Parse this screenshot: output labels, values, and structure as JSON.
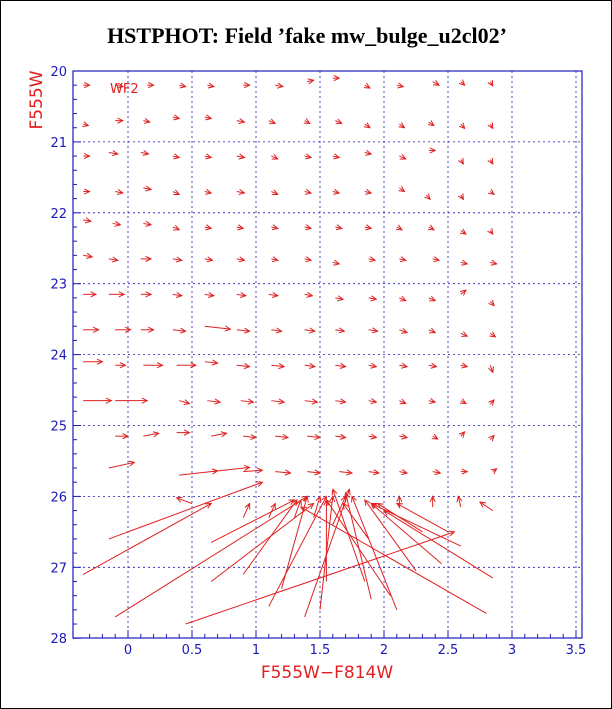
{
  "chart_data": {
    "type": "scatter",
    "title": "HSTPHOT: Field ’fake mw_bulge_u2cl02’",
    "xlabel": "F555W−F814W",
    "ylabel": "F555W",
    "panel_label": "WF2",
    "xlim": [
      -0.4,
      3.55
    ],
    "ylim": [
      28,
      20
    ],
    "y_inverted": true,
    "grid": true,
    "x_ticks": [
      "0",
      "0.5",
      "1",
      "1.5",
      "2",
      "2.5",
      "3",
      "3.5"
    ],
    "y_ticks": [
      "20",
      "21",
      "22",
      "23",
      "24",
      "25",
      "26",
      "27",
      "28"
    ],
    "colors": {
      "vectors": "#e02020",
      "frame": "#1a1ab8",
      "grid": "#1a1ab8",
      "title": "#000000"
    },
    "vectors": [
      {
        "x0": -0.35,
        "y0": 20.2,
        "dx": 0.05,
        "dy": 0.0
      },
      {
        "x0": -0.1,
        "y0": 20.2,
        "dx": 0.06,
        "dy": 0.02
      },
      {
        "x0": 0.15,
        "y0": 20.2,
        "dx": 0.05,
        "dy": 0.0
      },
      {
        "x0": 0.4,
        "y0": 20.2,
        "dx": 0.05,
        "dy": 0.02
      },
      {
        "x0": 0.62,
        "y0": 20.2,
        "dx": 0.05,
        "dy": 0.02
      },
      {
        "x0": 0.9,
        "y0": 20.2,
        "dx": 0.05,
        "dy": 0.0
      },
      {
        "x0": 1.15,
        "y0": 20.2,
        "dx": 0.06,
        "dy": 0.02
      },
      {
        "x0": 1.4,
        "y0": 20.15,
        "dx": 0.05,
        "dy": -0.02
      },
      {
        "x0": 1.6,
        "y0": 20.1,
        "dx": 0.05,
        "dy": 0.0
      },
      {
        "x0": 1.85,
        "y0": 20.2,
        "dx": 0.04,
        "dy": 0.04
      },
      {
        "x0": 2.1,
        "y0": 20.2,
        "dx": 0.05,
        "dy": 0.02
      },
      {
        "x0": 2.38,
        "y0": 20.15,
        "dx": 0.05,
        "dy": 0.05
      },
      {
        "x0": 2.6,
        "y0": 20.15,
        "dx": 0.03,
        "dy": 0.05
      },
      {
        "x0": 2.83,
        "y0": 20.15,
        "dx": 0.02,
        "dy": 0.06
      },
      {
        "x0": -0.35,
        "y0": 20.75,
        "dx": 0.04,
        "dy": 0.02
      },
      {
        "x0": -0.1,
        "y0": 20.7,
        "dx": 0.06,
        "dy": 0.0
      },
      {
        "x0": 0.12,
        "y0": 20.7,
        "dx": 0.05,
        "dy": 0.02
      },
      {
        "x0": 0.35,
        "y0": 20.65,
        "dx": 0.05,
        "dy": 0.02
      },
      {
        "x0": 0.6,
        "y0": 20.65,
        "dx": 0.05,
        "dy": 0.02
      },
      {
        "x0": 0.85,
        "y0": 20.7,
        "dx": 0.06,
        "dy": 0.02
      },
      {
        "x0": 1.1,
        "y0": 20.7,
        "dx": 0.05,
        "dy": 0.04
      },
      {
        "x0": 1.38,
        "y0": 20.7,
        "dx": 0.04,
        "dy": 0.04
      },
      {
        "x0": 1.62,
        "y0": 20.7,
        "dx": 0.05,
        "dy": 0.04
      },
      {
        "x0": 1.85,
        "y0": 20.75,
        "dx": 0.04,
        "dy": 0.05
      },
      {
        "x0": 2.12,
        "y0": 20.75,
        "dx": 0.04,
        "dy": 0.05
      },
      {
        "x0": 2.35,
        "y0": 20.72,
        "dx": 0.04,
        "dy": 0.05
      },
      {
        "x0": 2.6,
        "y0": 20.75,
        "dx": 0.03,
        "dy": 0.06
      },
      {
        "x0": 2.83,
        "y0": 20.75,
        "dx": 0.02,
        "dy": 0.06
      },
      {
        "x0": -0.35,
        "y0": 21.2,
        "dx": 0.05,
        "dy": 0.0
      },
      {
        "x0": -0.15,
        "y0": 21.15,
        "dx": 0.07,
        "dy": 0.02
      },
      {
        "x0": 0.1,
        "y0": 21.15,
        "dx": 0.06,
        "dy": 0.02
      },
      {
        "x0": 0.35,
        "y0": 21.2,
        "dx": 0.05,
        "dy": 0.02
      },
      {
        "x0": 0.6,
        "y0": 21.2,
        "dx": 0.05,
        "dy": 0.02
      },
      {
        "x0": 0.85,
        "y0": 21.2,
        "dx": 0.06,
        "dy": 0.02
      },
      {
        "x0": 1.12,
        "y0": 21.2,
        "dx": 0.05,
        "dy": 0.04
      },
      {
        "x0": 1.38,
        "y0": 21.2,
        "dx": 0.05,
        "dy": 0.02
      },
      {
        "x0": 1.6,
        "y0": 21.2,
        "dx": 0.05,
        "dy": 0.02
      },
      {
        "x0": 1.85,
        "y0": 21.15,
        "dx": 0.05,
        "dy": 0.02
      },
      {
        "x0": 2.12,
        "y0": 21.2,
        "dx": 0.05,
        "dy": 0.04
      },
      {
        "x0": 2.35,
        "y0": 21.12,
        "dx": 0.05,
        "dy": 0.0
      },
      {
        "x0": 2.6,
        "y0": 21.25,
        "dx": 0.02,
        "dy": 0.06
      },
      {
        "x0": 2.83,
        "y0": 21.25,
        "dx": 0.02,
        "dy": 0.06
      },
      {
        "x0": -0.35,
        "y0": 21.7,
        "dx": 0.05,
        "dy": 0.0
      },
      {
        "x0": -0.1,
        "y0": 21.7,
        "dx": 0.06,
        "dy": 0.02
      },
      {
        "x0": 0.12,
        "y0": 21.65,
        "dx": 0.06,
        "dy": 0.02
      },
      {
        "x0": 0.35,
        "y0": 21.7,
        "dx": 0.05,
        "dy": 0.04
      },
      {
        "x0": 0.6,
        "y0": 21.7,
        "dx": 0.05,
        "dy": 0.02
      },
      {
        "x0": 0.85,
        "y0": 21.7,
        "dx": 0.06,
        "dy": 0.02
      },
      {
        "x0": 1.12,
        "y0": 21.7,
        "dx": 0.05,
        "dy": 0.04
      },
      {
        "x0": 1.38,
        "y0": 21.7,
        "dx": 0.05,
        "dy": 0.02
      },
      {
        "x0": 1.6,
        "y0": 21.7,
        "dx": 0.05,
        "dy": 0.02
      },
      {
        "x0": 1.85,
        "y0": 21.7,
        "dx": 0.05,
        "dy": 0.02
      },
      {
        "x0": 2.12,
        "y0": 21.65,
        "dx": 0.04,
        "dy": 0.05
      },
      {
        "x0": 2.33,
        "y0": 21.75,
        "dx": 0.03,
        "dy": 0.06
      },
      {
        "x0": 2.6,
        "y0": 21.75,
        "dx": 0.02,
        "dy": 0.06
      },
      {
        "x0": 2.83,
        "y0": 21.7,
        "dx": 0.03,
        "dy": 0.04
      },
      {
        "x0": -0.35,
        "y0": 22.1,
        "dx": 0.06,
        "dy": 0.02
      },
      {
        "x0": -0.12,
        "y0": 22.15,
        "dx": 0.06,
        "dy": 0.02
      },
      {
        "x0": 0.12,
        "y0": 22.15,
        "dx": 0.06,
        "dy": 0.02
      },
      {
        "x0": 0.35,
        "y0": 22.2,
        "dx": 0.05,
        "dy": 0.04
      },
      {
        "x0": 0.6,
        "y0": 22.2,
        "dx": 0.05,
        "dy": 0.02
      },
      {
        "x0": 0.85,
        "y0": 22.2,
        "dx": 0.05,
        "dy": 0.02
      },
      {
        "x0": 1.12,
        "y0": 22.2,
        "dx": 0.05,
        "dy": 0.02
      },
      {
        "x0": 1.38,
        "y0": 22.2,
        "dx": 0.05,
        "dy": 0.02
      },
      {
        "x0": 1.62,
        "y0": 22.2,
        "dx": 0.05,
        "dy": 0.02
      },
      {
        "x0": 1.85,
        "y0": 22.2,
        "dx": 0.05,
        "dy": 0.02
      },
      {
        "x0": 2.1,
        "y0": 22.2,
        "dx": 0.04,
        "dy": 0.04
      },
      {
        "x0": 2.35,
        "y0": 22.2,
        "dx": 0.04,
        "dy": 0.04
      },
      {
        "x0": 2.6,
        "y0": 22.25,
        "dx": 0.04,
        "dy": 0.05
      },
      {
        "x0": 2.83,
        "y0": 22.25,
        "dx": 0.02,
        "dy": 0.05
      },
      {
        "x0": -0.35,
        "y0": 22.6,
        "dx": 0.07,
        "dy": 0.02
      },
      {
        "x0": -0.15,
        "y0": 22.65,
        "dx": 0.07,
        "dy": 0.02
      },
      {
        "x0": 0.1,
        "y0": 22.65,
        "dx": 0.08,
        "dy": 0.0
      },
      {
        "x0": 0.35,
        "y0": 22.65,
        "dx": 0.07,
        "dy": 0.02
      },
      {
        "x0": 0.6,
        "y0": 22.65,
        "dx": 0.06,
        "dy": 0.02
      },
      {
        "x0": 0.85,
        "y0": 22.65,
        "dx": 0.06,
        "dy": 0.02
      },
      {
        "x0": 1.12,
        "y0": 22.65,
        "dx": 0.05,
        "dy": 0.02
      },
      {
        "x0": 1.38,
        "y0": 22.65,
        "dx": 0.05,
        "dy": 0.02
      },
      {
        "x0": 1.6,
        "y0": 22.7,
        "dx": 0.05,
        "dy": 0.02
      },
      {
        "x0": 1.88,
        "y0": 22.65,
        "dx": 0.05,
        "dy": 0.02
      },
      {
        "x0": 2.12,
        "y0": 22.65,
        "dx": 0.05,
        "dy": 0.02
      },
      {
        "x0": 2.38,
        "y0": 22.65,
        "dx": 0.05,
        "dy": 0.02
      },
      {
        "x0": 2.6,
        "y0": 22.7,
        "dx": 0.05,
        "dy": 0.02
      },
      {
        "x0": 2.83,
        "y0": 22.7,
        "dx": 0.05,
        "dy": 0.02
      },
      {
        "x0": -0.35,
        "y0": 23.15,
        "dx": 0.1,
        "dy": 0.0
      },
      {
        "x0": -0.15,
        "y0": 23.15,
        "dx": 0.12,
        "dy": 0.0
      },
      {
        "x0": 0.1,
        "y0": 23.15,
        "dx": 0.08,
        "dy": 0.0
      },
      {
        "x0": 0.35,
        "y0": 23.15,
        "dx": 0.07,
        "dy": 0.02
      },
      {
        "x0": 0.6,
        "y0": 23.15,
        "dx": 0.07,
        "dy": 0.02
      },
      {
        "x0": 0.85,
        "y0": 23.15,
        "dx": 0.07,
        "dy": 0.02
      },
      {
        "x0": 1.1,
        "y0": 23.15,
        "dx": 0.07,
        "dy": 0.02
      },
      {
        "x0": 1.38,
        "y0": 23.15,
        "dx": 0.06,
        "dy": 0.02
      },
      {
        "x0": 1.62,
        "y0": 23.2,
        "dx": 0.06,
        "dy": 0.02
      },
      {
        "x0": 1.88,
        "y0": 23.2,
        "dx": 0.06,
        "dy": 0.02
      },
      {
        "x0": 2.12,
        "y0": 23.2,
        "dx": 0.05,
        "dy": 0.04
      },
      {
        "x0": 2.35,
        "y0": 23.2,
        "dx": 0.05,
        "dy": 0.04
      },
      {
        "x0": 2.6,
        "y0": 23.15,
        "dx": 0.04,
        "dy": -0.06
      },
      {
        "x0": 2.83,
        "y0": 23.25,
        "dx": 0.03,
        "dy": 0.06
      },
      {
        "x0": -0.35,
        "y0": 23.65,
        "dx": 0.12,
        "dy": 0.0
      },
      {
        "x0": -0.1,
        "y0": 23.65,
        "dx": 0.12,
        "dy": 0.0
      },
      {
        "x0": 0.1,
        "y0": 23.65,
        "dx": 0.1,
        "dy": 0.0
      },
      {
        "x0": 0.35,
        "y0": 23.65,
        "dx": 0.1,
        "dy": 0.02
      },
      {
        "x0": 0.6,
        "y0": 23.6,
        "dx": 0.2,
        "dy": 0.04
      },
      {
        "x0": 0.85,
        "y0": 23.65,
        "dx": 0.1,
        "dy": 0.02
      },
      {
        "x0": 1.12,
        "y0": 23.65,
        "dx": 0.08,
        "dy": 0.02
      },
      {
        "x0": 1.38,
        "y0": 23.65,
        "dx": 0.08,
        "dy": 0.02
      },
      {
        "x0": 1.62,
        "y0": 23.65,
        "dx": 0.07,
        "dy": 0.02
      },
      {
        "x0": 1.88,
        "y0": 23.65,
        "dx": 0.07,
        "dy": 0.02
      },
      {
        "x0": 2.12,
        "y0": 23.65,
        "dx": 0.06,
        "dy": 0.04
      },
      {
        "x0": 2.35,
        "y0": 23.65,
        "dx": 0.05,
        "dy": 0.04
      },
      {
        "x0": 2.6,
        "y0": 23.7,
        "dx": 0.05,
        "dy": 0.04
      },
      {
        "x0": 2.83,
        "y0": 23.7,
        "dx": 0.04,
        "dy": 0.05
      },
      {
        "x0": -0.35,
        "y0": 24.1,
        "dx": 0.15,
        "dy": 0.0
      },
      {
        "x0": -0.1,
        "y0": 24.15,
        "dx": 0.08,
        "dy": 0.0
      },
      {
        "x0": 0.12,
        "y0": 24.15,
        "dx": 0.15,
        "dy": 0.0
      },
      {
        "x0": 0.38,
        "y0": 24.15,
        "dx": 0.15,
        "dy": 0.0
      },
      {
        "x0": 0.6,
        "y0": 24.1,
        "dx": 0.1,
        "dy": 0.02
      },
      {
        "x0": 0.85,
        "y0": 24.15,
        "dx": 0.1,
        "dy": 0.02
      },
      {
        "x0": 1.12,
        "y0": 24.15,
        "dx": 0.1,
        "dy": 0.02
      },
      {
        "x0": 1.38,
        "y0": 24.15,
        "dx": 0.08,
        "dy": 0.02
      },
      {
        "x0": 1.62,
        "y0": 24.15,
        "dx": 0.08,
        "dy": 0.02
      },
      {
        "x0": 1.88,
        "y0": 24.15,
        "dx": 0.06,
        "dy": 0.02
      },
      {
        "x0": 2.12,
        "y0": 24.15,
        "dx": 0.06,
        "dy": 0.02
      },
      {
        "x0": 2.35,
        "y0": 24.15,
        "dx": 0.06,
        "dy": 0.02
      },
      {
        "x0": 2.6,
        "y0": 24.15,
        "dx": 0.05,
        "dy": 0.02
      },
      {
        "x0": 2.83,
        "y0": 24.15,
        "dx": 0.02,
        "dy": 0.1
      },
      {
        "x0": -0.35,
        "y0": 24.65,
        "dx": 0.22,
        "dy": 0.0
      },
      {
        "x0": -0.1,
        "y0": 24.65,
        "dx": 0.25,
        "dy": 0.0
      },
      {
        "x0": 0.4,
        "y0": 24.65,
        "dx": 0.08,
        "dy": 0.04
      },
      {
        "x0": 0.62,
        "y0": 24.65,
        "dx": 0.1,
        "dy": 0.02
      },
      {
        "x0": 0.88,
        "y0": 24.65,
        "dx": 0.1,
        "dy": 0.02
      },
      {
        "x0": 1.12,
        "y0": 24.65,
        "dx": 0.1,
        "dy": 0.02
      },
      {
        "x0": 1.38,
        "y0": 24.65,
        "dx": 0.1,
        "dy": 0.02
      },
      {
        "x0": 1.62,
        "y0": 24.65,
        "dx": 0.08,
        "dy": 0.02
      },
      {
        "x0": 1.88,
        "y0": 24.65,
        "dx": 0.06,
        "dy": 0.02
      },
      {
        "x0": 2.12,
        "y0": 24.65,
        "dx": 0.05,
        "dy": 0.04
      },
      {
        "x0": 2.35,
        "y0": 24.65,
        "dx": 0.05,
        "dy": 0.02
      },
      {
        "x0": 2.6,
        "y0": 24.65,
        "dx": 0.04,
        "dy": 0.04
      },
      {
        "x0": 2.83,
        "y0": 24.7,
        "dx": 0.03,
        "dy": -0.06
      },
      {
        "x0": -0.1,
        "y0": 25.15,
        "dx": 0.1,
        "dy": 0.0
      },
      {
        "x0": 0.12,
        "y0": 25.15,
        "dx": 0.12,
        "dy": -0.04
      },
      {
        "x0": 0.38,
        "y0": 25.1,
        "dx": 0.1,
        "dy": 0.0
      },
      {
        "x0": 0.65,
        "y0": 25.15,
        "dx": 0.12,
        "dy": -0.04
      },
      {
        "x0": 0.9,
        "y0": 25.15,
        "dx": 0.1,
        "dy": 0.02
      },
      {
        "x0": 1.15,
        "y0": 25.15,
        "dx": 0.1,
        "dy": 0.02
      },
      {
        "x0": 1.4,
        "y0": 25.15,
        "dx": 0.1,
        "dy": 0.02
      },
      {
        "x0": 1.62,
        "y0": 25.15,
        "dx": 0.08,
        "dy": 0.02
      },
      {
        "x0": 1.88,
        "y0": 25.15,
        "dx": 0.06,
        "dy": 0.02
      },
      {
        "x0": 2.12,
        "y0": 25.15,
        "dx": 0.06,
        "dy": 0.02
      },
      {
        "x0": 2.38,
        "y0": 25.15,
        "dx": 0.04,
        "dy": 0.04
      },
      {
        "x0": 2.6,
        "y0": 25.15,
        "dx": 0.03,
        "dy": -0.06
      },
      {
        "x0": 2.83,
        "y0": 25.2,
        "dx": 0.03,
        "dy": -0.06
      },
      {
        "x0": -0.15,
        "y0": 25.6,
        "dx": 0.2,
        "dy": -0.08
      },
      {
        "x0": 0.4,
        "y0": 25.7,
        "dx": 0.3,
        "dy": -0.06
      },
      {
        "x0": 0.65,
        "y0": 25.65,
        "dx": 0.3,
        "dy": -0.06
      },
      {
        "x0": 0.9,
        "y0": 25.65,
        "dx": 0.15,
        "dy": -0.02
      },
      {
        "x0": 1.15,
        "y0": 25.65,
        "dx": 0.12,
        "dy": 0.02
      },
      {
        "x0": 1.4,
        "y0": 25.65,
        "dx": 0.1,
        "dy": 0.02
      },
      {
        "x0": 1.65,
        "y0": 25.65,
        "dx": 0.1,
        "dy": 0.02
      },
      {
        "x0": 1.88,
        "y0": 25.65,
        "dx": 0.08,
        "dy": 0.02
      },
      {
        "x0": 2.12,
        "y0": 25.65,
        "dx": 0.06,
        "dy": 0.02
      },
      {
        "x0": 2.38,
        "y0": 25.65,
        "dx": 0.06,
        "dy": 0.02
      },
      {
        "x0": 2.6,
        "y0": 25.65,
        "dx": 0.05,
        "dy": 0.0
      },
      {
        "x0": 2.85,
        "y0": 25.65,
        "dx": 0.03,
        "dy": -0.04
      },
      {
        "x0": -0.15,
        "y0": 26.6,
        "dx": 1.2,
        "dy": -0.8
      },
      {
        "x0": -0.35,
        "y0": 27.1,
        "dx": 1.0,
        "dy": -1.0
      },
      {
        "x0": -0.1,
        "y0": 27.7,
        "dx": 1.5,
        "dy": -1.7
      },
      {
        "x0": 0.45,
        "y0": 27.8,
        "dx": 2.1,
        "dy": -1.3
      },
      {
        "x0": 0.65,
        "y0": 26.65,
        "dx": 0.65,
        "dy": -0.6
      },
      {
        "x0": 0.65,
        "y0": 27.2,
        "dx": 0.8,
        "dy": -1.1
      },
      {
        "x0": 0.5,
        "y0": 26.1,
        "dx": -0.12,
        "dy": -0.08
      },
      {
        "x0": 0.9,
        "y0": 27.1,
        "dx": 0.42,
        "dy": -1.05
      },
      {
        "x0": 0.9,
        "y0": 26.3,
        "dx": 0.05,
        "dy": -0.2
      },
      {
        "x0": 1.1,
        "y0": 27.55,
        "dx": 0.45,
        "dy": -1.55
      },
      {
        "x0": 1.1,
        "y0": 26.3,
        "dx": 0.05,
        "dy": -0.2
      },
      {
        "x0": 1.2,
        "y0": 27.3,
        "dx": 0.2,
        "dy": -1.3
      },
      {
        "x0": 1.3,
        "y0": 26.3,
        "dx": 0.05,
        "dy": -0.25
      },
      {
        "x0": 1.38,
        "y0": 27.7,
        "dx": 0.35,
        "dy": -1.8
      },
      {
        "x0": 1.45,
        "y0": 26.3,
        "dx": 0.05,
        "dy": -0.3
      },
      {
        "x0": 1.5,
        "y0": 27.6,
        "dx": 0.1,
        "dy": -1.6
      },
      {
        "x0": 1.55,
        "y0": 27.2,
        "dx": 0.0,
        "dy": -1.15
      },
      {
        "x0": 1.6,
        "y0": 26.4,
        "dx": 0.1,
        "dy": -0.4
      },
      {
        "x0": 1.85,
        "y0": 27.2,
        "dx": -0.25,
        "dy": -1.3
      },
      {
        "x0": 1.88,
        "y0": 26.6,
        "dx": -0.2,
        "dy": -0.5
      },
      {
        "x0": 1.9,
        "y0": 27.45,
        "dx": -0.2,
        "dy": -1.5
      },
      {
        "x0": 2.05,
        "y0": 27.4,
        "dx": -0.5,
        "dy": -1.35
      },
      {
        "x0": 2.1,
        "y0": 27.6,
        "dx": -0.35,
        "dy": -1.6
      },
      {
        "x0": 2.25,
        "y0": 27.05,
        "dx": -0.4,
        "dy": -1.0
      },
      {
        "x0": 2.3,
        "y0": 26.5,
        "dx": -0.35,
        "dy": -0.4
      },
      {
        "x0": 2.45,
        "y0": 26.95,
        "dx": -0.55,
        "dy": -0.85
      },
      {
        "x0": 2.5,
        "y0": 26.5,
        "dx": -0.4,
        "dy": -0.4
      },
      {
        "x0": 2.6,
        "y0": 26.7,
        "dx": -0.7,
        "dy": -0.6
      },
      {
        "x0": 2.85,
        "y0": 27.15,
        "dx": -0.85,
        "dy": -0.95
      },
      {
        "x0": 2.8,
        "y0": 27.65,
        "dx": -1.45,
        "dy": -1.5
      },
      {
        "x0": 2.85,
        "y0": 26.2,
        "dx": -0.1,
        "dy": -0.12
      },
      {
        "x0": 2.6,
        "y0": 26.15,
        "dx": -0.02,
        "dy": -0.15
      },
      {
        "x0": 2.38,
        "y0": 26.15,
        "dx": 0.0,
        "dy": -0.15
      },
      {
        "x0": 2.12,
        "y0": 26.15,
        "dx": 0.0,
        "dy": -0.15
      }
    ]
  }
}
